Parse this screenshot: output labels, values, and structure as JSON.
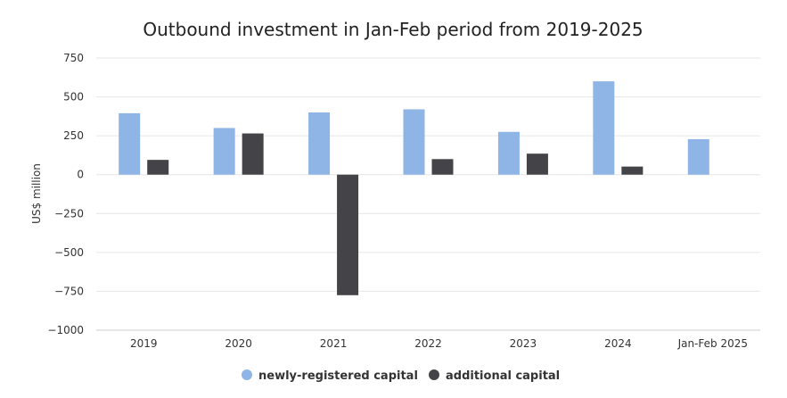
{
  "chart_data": {
    "type": "bar",
    "title": "Outbound investment in Jan-Feb period from 2019-2025",
    "xlabel": "",
    "ylabel": "US$ million",
    "ylim": [
      -1000,
      750
    ],
    "yticks": [
      750,
      500,
      250,
      0,
      -250,
      -500,
      -750,
      -1000
    ],
    "grid": true,
    "legend_position": "bottom",
    "categories": [
      "2019",
      "2020",
      "2021",
      "2022",
      "2023",
      "2024",
      "Jan-Feb 2025"
    ],
    "series": [
      {
        "name": "newly-registered capital",
        "color": "#8fb4e6",
        "values": [
          395,
          300,
          400,
          420,
          275,
          600,
          228
        ]
      },
      {
        "name": "additional capital",
        "color": "#434348",
        "values": [
          95,
          265,
          -775,
          100,
          135,
          52,
          null
        ]
      }
    ]
  }
}
